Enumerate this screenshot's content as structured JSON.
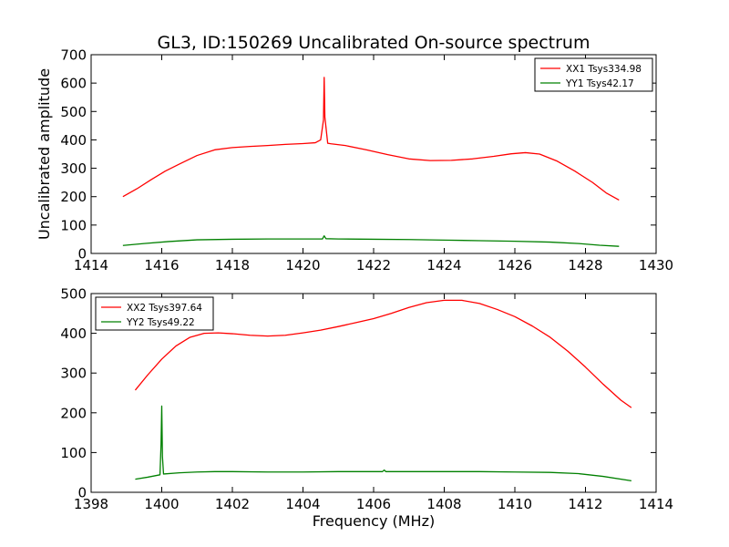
{
  "title": "GL3, ID:150269 Uncalibrated On-source spectrum",
  "chart_data": [
    {
      "type": "line",
      "panel": "top",
      "ylabel": "Uncalibrated amplitude",
      "xlabel": "",
      "xlim": [
        1414,
        1430
      ],
      "ylim": [
        0,
        700
      ],
      "xticks": [
        1414,
        1416,
        1418,
        1420,
        1422,
        1424,
        1426,
        1428,
        1430
      ],
      "yticks": [
        0,
        100,
        200,
        300,
        400,
        500,
        600,
        700
      ],
      "legend_position": "top-right",
      "series": [
        {
          "name": "XX1 Tsys334.98",
          "color": "#ff0000",
          "x": [
            1414.9,
            1415.3,
            1415.7,
            1416.1,
            1416.5,
            1417.0,
            1417.5,
            1418.0,
            1418.5,
            1419.0,
            1419.5,
            1420.0,
            1420.35,
            1420.5,
            1420.58,
            1420.6,
            1420.62,
            1420.7,
            1420.8,
            1421.2,
            1421.8,
            1422.4,
            1423.0,
            1423.6,
            1424.2,
            1424.8,
            1425.4,
            1425.9,
            1426.3,
            1426.7,
            1427.2,
            1427.7,
            1428.2,
            1428.6,
            1428.95
          ],
          "y": [
            200,
            228,
            260,
            290,
            315,
            345,
            365,
            373,
            377,
            380,
            384,
            387,
            390,
            400,
            470,
            620,
            480,
            388,
            386,
            380,
            365,
            348,
            333,
            327,
            328,
            333,
            342,
            351,
            355,
            350,
            325,
            290,
            250,
            212,
            188
          ]
        },
        {
          "name": "YY1 Tsys42.17",
          "color": "#008000",
          "x": [
            1414.9,
            1415.5,
            1416.2,
            1417.0,
            1418.0,
            1419.0,
            1420.0,
            1420.55,
            1420.6,
            1420.65,
            1421.0,
            1422.0,
            1423.0,
            1424.0,
            1425.0,
            1426.0,
            1427.0,
            1427.8,
            1428.4,
            1428.95
          ],
          "y": [
            28,
            35,
            42,
            48,
            50,
            51,
            51,
            51,
            62,
            52,
            51,
            50,
            49,
            47,
            45,
            43,
            40,
            35,
            29,
            25
          ]
        }
      ]
    },
    {
      "type": "line",
      "panel": "bottom",
      "ylabel": "",
      "xlabel": "Frequency (MHz)",
      "xlim": [
        1398,
        1414
      ],
      "ylim": [
        0,
        500
      ],
      "xticks": [
        1398,
        1400,
        1402,
        1404,
        1406,
        1408,
        1410,
        1412,
        1414
      ],
      "yticks": [
        0,
        100,
        200,
        300,
        400,
        500
      ],
      "legend_position": "top-left",
      "series": [
        {
          "name": "XX2 Tsys397.64",
          "color": "#ff0000",
          "x": [
            1399.25,
            1399.6,
            1400.0,
            1400.4,
            1400.8,
            1401.2,
            1401.6,
            1402.0,
            1402.5,
            1403.0,
            1403.5,
            1404.0,
            1404.5,
            1405.0,
            1405.5,
            1406.0,
            1406.5,
            1407.0,
            1407.5,
            1408.0,
            1408.5,
            1409.0,
            1409.5,
            1410.0,
            1410.5,
            1411.0,
            1411.5,
            1412.0,
            1412.5,
            1413.0,
            1413.3
          ],
          "y": [
            257,
            295,
            335,
            368,
            390,
            400,
            401,
            399,
            395,
            393,
            395,
            401,
            408,
            417,
            427,
            437,
            450,
            465,
            477,
            483,
            483,
            475,
            460,
            442,
            418,
            390,
            355,
            315,
            272,
            232,
            213
          ]
        },
        {
          "name": "YY2 Tsys49.22",
          "color": "#008000",
          "x": [
            1399.25,
            1399.6,
            1399.95,
            1399.98,
            1400.0,
            1400.02,
            1400.05,
            1400.5,
            1401.0,
            1401.5,
            1402.0,
            1403.0,
            1404.0,
            1405.0,
            1406.0,
            1406.25,
            1406.3,
            1406.35,
            1407.0,
            1408.0,
            1409.0,
            1410.0,
            1411.0,
            1411.8,
            1412.5,
            1413.3
          ],
          "y": [
            33,
            38,
            44,
            120,
            217,
            90,
            46,
            49,
            51,
            52,
            52,
            51,
            51,
            52,
            52,
            52,
            56,
            52,
            52,
            52,
            52,
            51,
            50,
            47,
            40,
            29
          ]
        }
      ]
    }
  ]
}
